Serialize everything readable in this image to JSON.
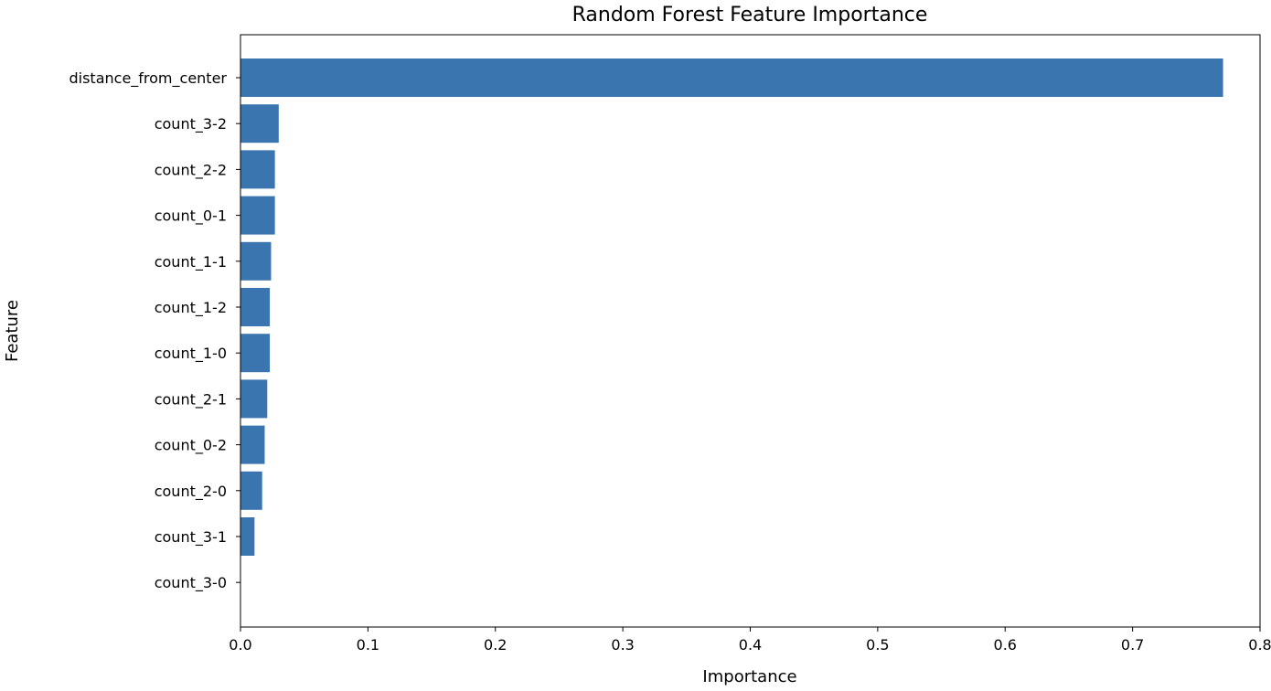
{
  "chart_data": {
    "type": "bar",
    "orientation": "horizontal",
    "title": "Random Forest Feature Importance",
    "xlabel": "Importance",
    "ylabel": "Feature",
    "xlim": [
      0.0,
      0.8
    ],
    "xticks": [
      "0.0",
      "0.1",
      "0.2",
      "0.3",
      "0.4",
      "0.5",
      "0.6",
      "0.7",
      "0.8"
    ],
    "grid": false,
    "color": "#3a75b0",
    "categories": [
      "distance_from_center",
      "count_3-2",
      "count_2-2",
      "count_0-1",
      "count_1-1",
      "count_1-2",
      "count_1-0",
      "count_2-1",
      "count_0-2",
      "count_2-0",
      "count_3-1",
      "count_3-0"
    ],
    "values": [
      0.771,
      0.03,
      0.027,
      0.027,
      0.024,
      0.023,
      0.023,
      0.021,
      0.019,
      0.017,
      0.011,
      0.0
    ]
  }
}
